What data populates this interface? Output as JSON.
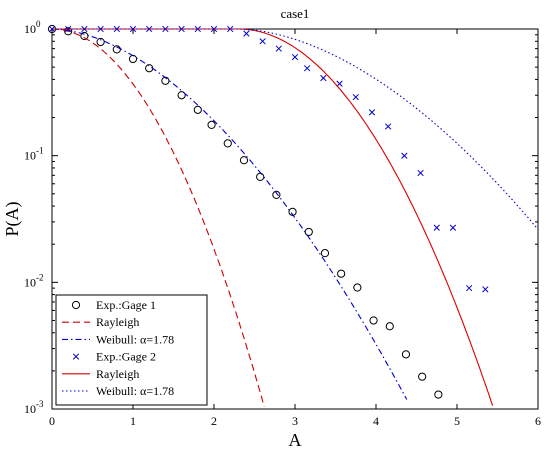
{
  "chart_data": {
    "type": "line",
    "title": "case1",
    "xlabel": "A",
    "ylabel": "P(A)",
    "xlim": [
      0,
      6
    ],
    "ylim": [
      0.001,
      1
    ],
    "yscale": "log",
    "grid": false,
    "legend_position": "bottom-left",
    "x_ticks": [
      "0",
      "1",
      "2",
      "3",
      "4",
      "5",
      "6"
    ],
    "y_ticks": [
      {
        "value": 0.001,
        "base": "10",
        "exp": "-3"
      },
      {
        "value": 0.01,
        "base": "10",
        "exp": "-2"
      },
      {
        "value": 0.1,
        "base": "10",
        "exp": "-1"
      },
      {
        "value": 1,
        "base": "10",
        "exp": "0"
      }
    ],
    "series": [
      {
        "name": "Exp.:Gage 1",
        "kind": "marker",
        "marker": "circle",
        "color": "#000000",
        "points": [
          [
            0.0,
            1.0
          ],
          [
            0.2,
            0.96
          ],
          [
            0.4,
            0.88
          ],
          [
            0.6,
            0.79
          ],
          [
            0.8,
            0.69
          ],
          [
            1.0,
            0.58
          ],
          [
            1.2,
            0.49
          ],
          [
            1.4,
            0.39
          ],
          [
            1.6,
            0.3
          ],
          [
            1.8,
            0.23
          ],
          [
            1.97,
            0.175
          ],
          [
            2.17,
            0.125
          ],
          [
            2.37,
            0.092
          ],
          [
            2.57,
            0.068
          ],
          [
            2.77,
            0.049
          ],
          [
            2.97,
            0.036
          ],
          [
            3.17,
            0.025
          ],
          [
            3.37,
            0.017
          ],
          [
            3.57,
            0.0117
          ],
          [
            3.77,
            0.0091
          ],
          [
            3.97,
            0.005
          ],
          [
            4.17,
            0.0045
          ],
          [
            4.37,
            0.0027
          ],
          [
            4.57,
            0.0018
          ],
          [
            4.77,
            0.0013
          ]
        ]
      },
      {
        "name": "Rayleigh",
        "kind": "line",
        "dash": "7,4",
        "color": "#cc0000",
        "formula": "rayleigh",
        "scale": 1.0,
        "xmax": 3.72
      },
      {
        "name": "Weibull: α=1.78",
        "kind": "line",
        "dash": "6,3,1.5,3",
        "color": "#0000cc",
        "formula": "weibull",
        "alpha": 1.78,
        "beta": 1.5,
        "xmax": 4.38
      },
      {
        "name": "Exp.:Gage 2",
        "kind": "marker",
        "marker": "x",
        "color": "#0000cc",
        "points": [
          [
            0.0,
            1.0
          ],
          [
            0.2,
            1.0
          ],
          [
            0.4,
            1.0
          ],
          [
            0.6,
            1.0
          ],
          [
            0.8,
            1.0
          ],
          [
            1.0,
            1.0
          ],
          [
            1.2,
            1.0
          ],
          [
            1.4,
            1.0
          ],
          [
            1.6,
            1.0
          ],
          [
            1.8,
            1.0
          ],
          [
            2.0,
            1.0
          ],
          [
            2.2,
            1.0
          ],
          [
            2.4,
            0.92
          ],
          [
            2.6,
            0.8
          ],
          [
            2.8,
            0.7
          ],
          [
            3.0,
            0.6
          ],
          [
            3.15,
            0.49
          ],
          [
            3.35,
            0.41
          ],
          [
            3.55,
            0.37
          ],
          [
            3.75,
            0.29
          ],
          [
            3.95,
            0.22
          ],
          [
            4.15,
            0.17
          ],
          [
            4.35,
            0.1
          ],
          [
            4.55,
            0.073
          ],
          [
            4.75,
            0.027
          ],
          [
            4.95,
            0.027
          ],
          [
            5.15,
            0.009
          ],
          [
            5.35,
            0.0088
          ]
        ]
      },
      {
        "name": "Rayleigh",
        "kind": "line",
        "dash": "",
        "color": "#dd0000",
        "formula": "rayleigh_shift",
        "shift": 2.3,
        "scale": 1.2,
        "xmax": 5.83
      },
      {
        "name": "Weibull: α=1.78",
        "kind": "line",
        "dash": "1.5,2.5",
        "color": "#0000cc",
        "formula": "weibull_shift",
        "shift": 2.3,
        "alpha": 1.78,
        "beta": 1.79,
        "xmax": 6.0
      }
    ]
  }
}
